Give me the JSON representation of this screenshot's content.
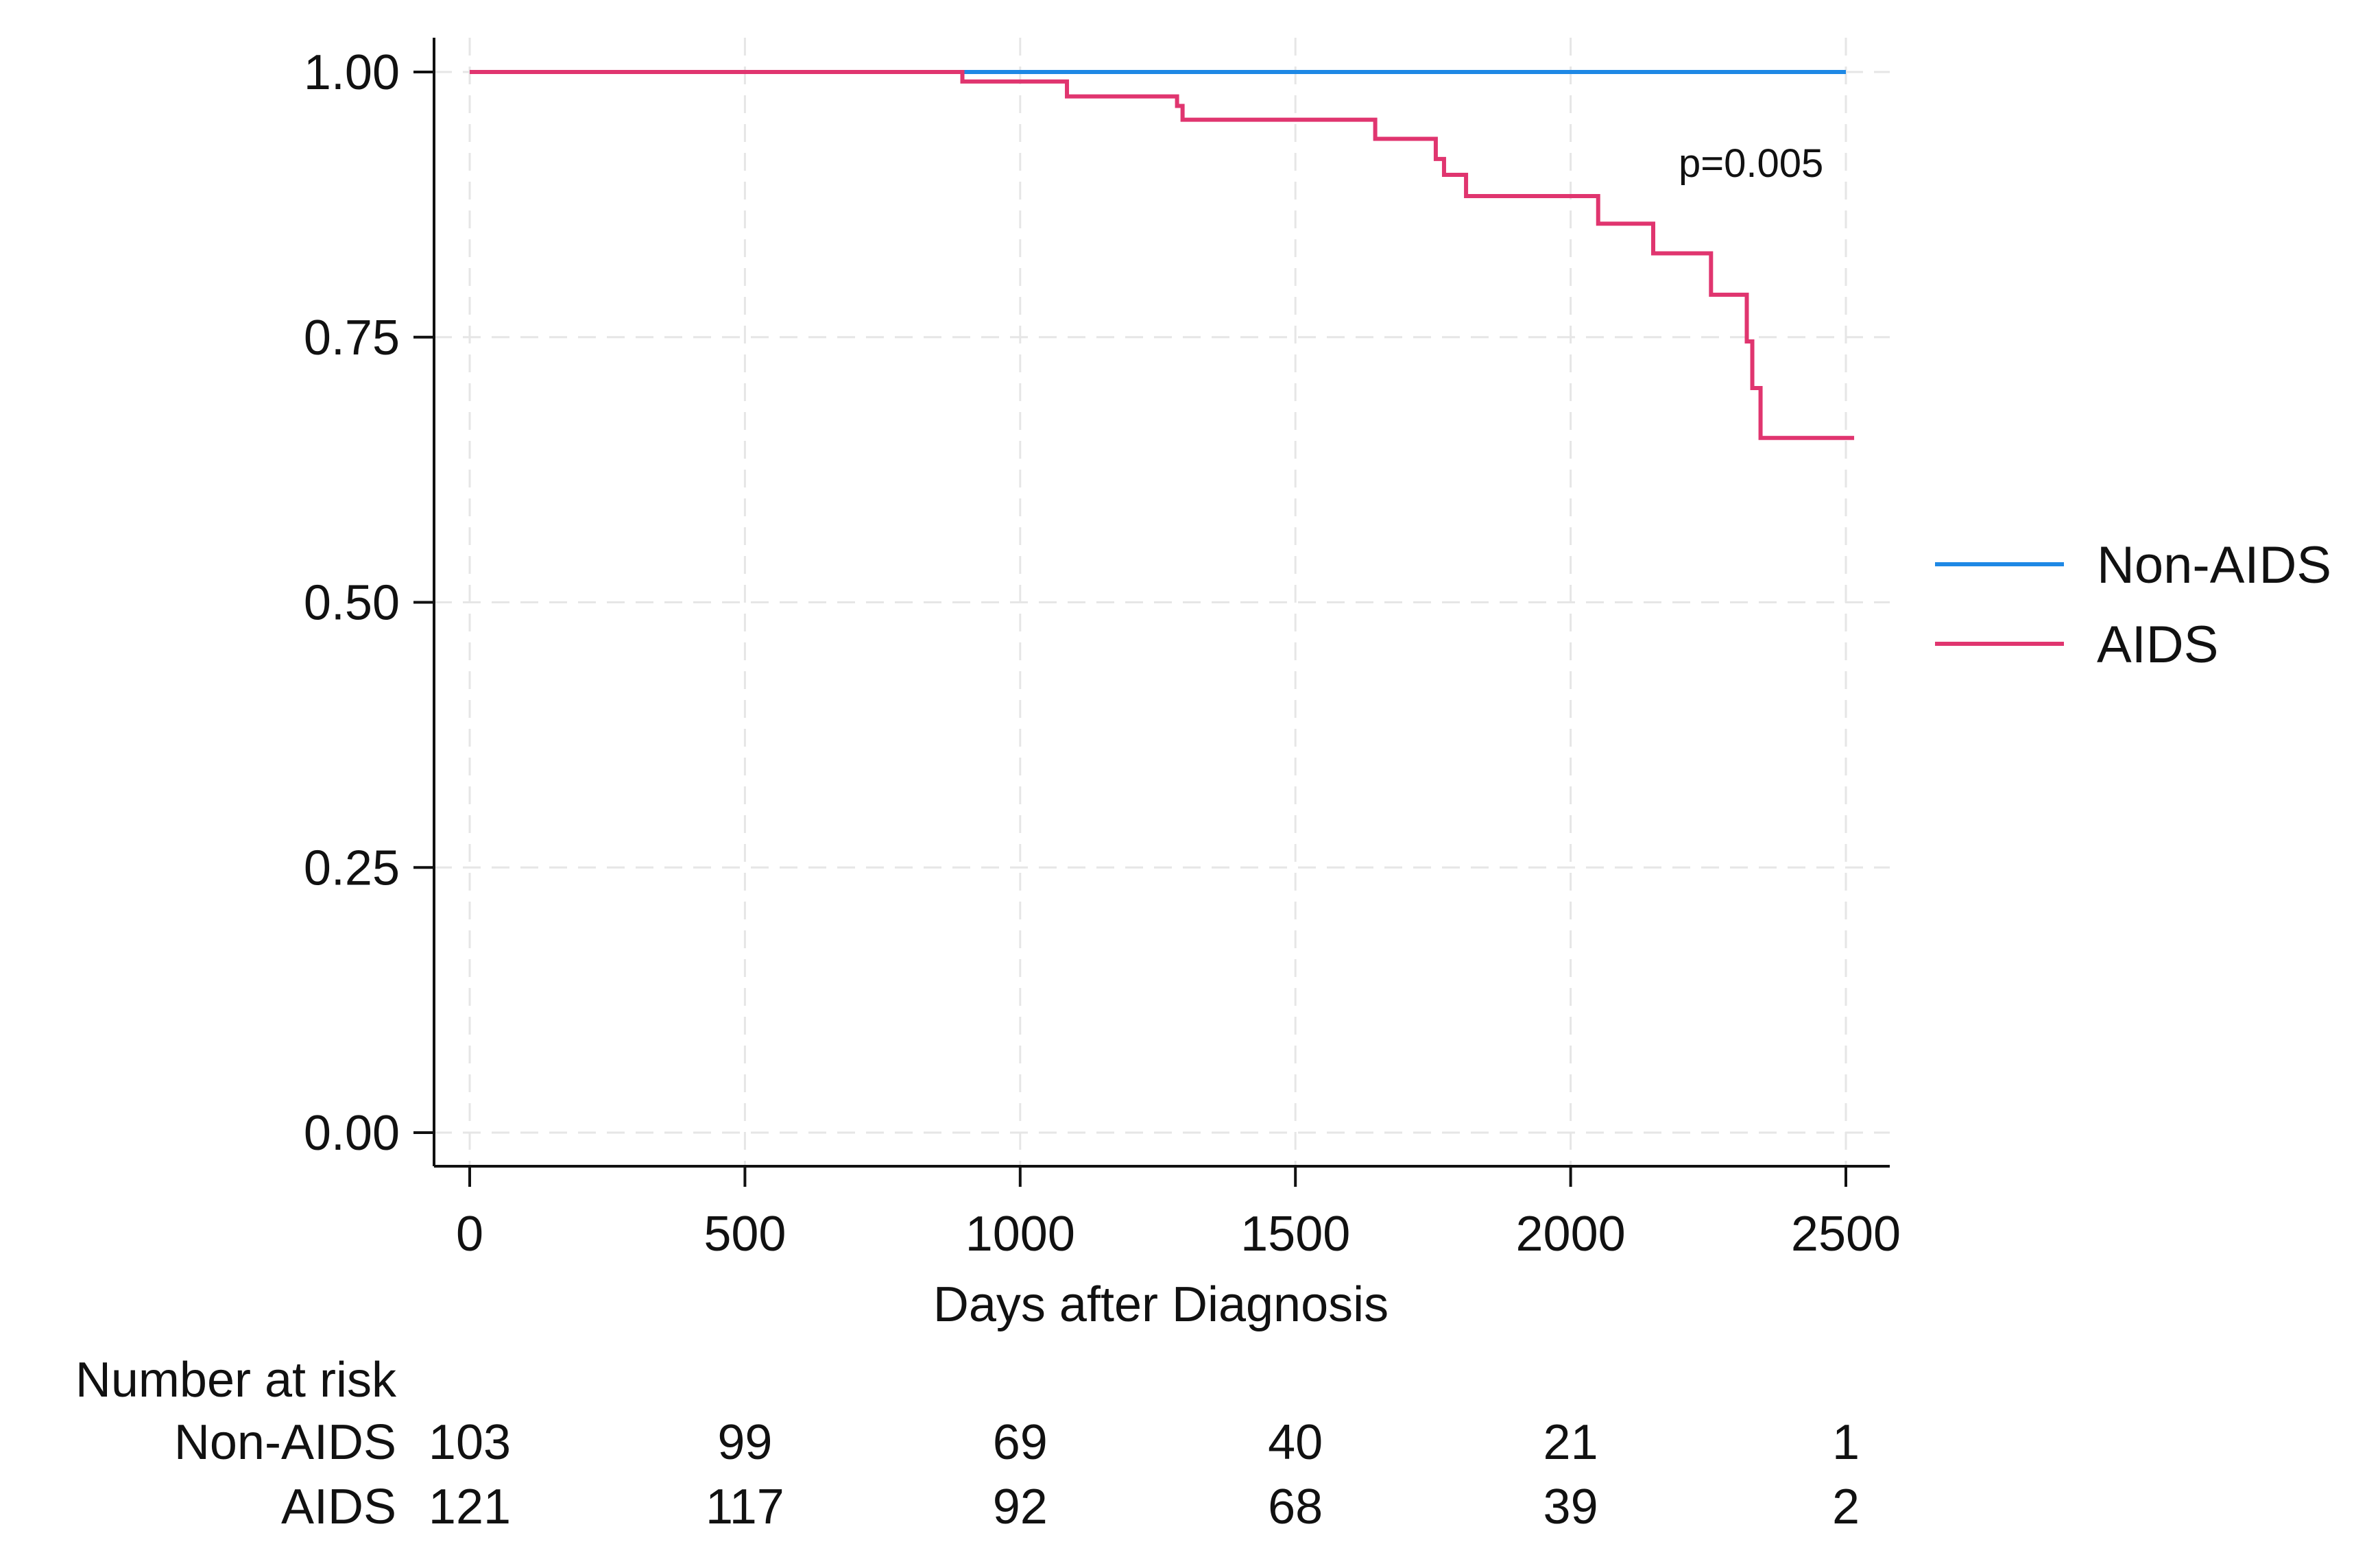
{
  "chart_data": {
    "type": "line",
    "subtype": "kaplan-meier",
    "title": "",
    "xlabel": "Days after Diagnosis",
    "ylabel": "",
    "xlim": [
      0,
      2500
    ],
    "ylim": [
      0,
      1
    ],
    "xticks": [
      0,
      500,
      1000,
      1500,
      2000,
      2500
    ],
    "yticks": [
      0,
      0.25,
      0.5,
      0.75,
      1
    ],
    "xtick_labels": [
      "0",
      "500",
      "1000",
      "1500",
      "2000",
      "2500"
    ],
    "ytick_labels": [
      "0.00",
      "0.25",
      "0.50",
      "0.75",
      "1.00"
    ],
    "grid": true,
    "legend_position": "right",
    "annotation": "p=0.005",
    "series": [
      {
        "name": "Non-AIDS",
        "color": "#1E88E5",
        "steps": [
          [
            0,
            1.0
          ],
          [
            2500,
            1.0
          ]
        ]
      },
      {
        "name": "AIDS",
        "color": "#E0356F",
        "steps": [
          [
            0,
            1.0
          ],
          [
            895,
            0.991
          ],
          [
            1085,
            0.977
          ],
          [
            1285,
            0.968
          ],
          [
            1295,
            0.955
          ],
          [
            1645,
            0.937
          ],
          [
            1755,
            0.918
          ],
          [
            1770,
            0.903
          ],
          [
            1810,
            0.883
          ],
          [
            2050,
            0.857
          ],
          [
            2150,
            0.829
          ],
          [
            2255,
            0.79
          ],
          [
            2320,
            0.746
          ],
          [
            2330,
            0.702
          ],
          [
            2345,
            0.655
          ],
          [
            2515,
            0.655
          ]
        ]
      }
    ],
    "risk_table": {
      "title": "Number at risk",
      "rows": [
        {
          "name": "Non-AIDS",
          "values": [
            "103",
            "99",
            "69",
            "40",
            "21",
            "1"
          ]
        },
        {
          "name": "AIDS",
          "values": [
            "121",
            "117",
            "92",
            "68",
            "39",
            "2"
          ]
        }
      ]
    }
  }
}
